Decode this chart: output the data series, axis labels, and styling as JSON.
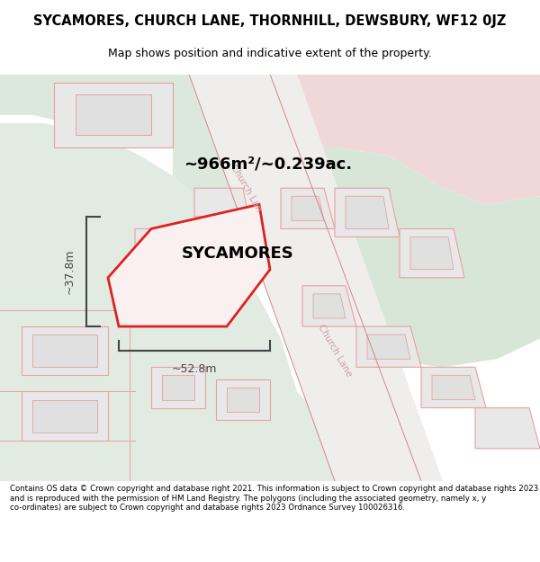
{
  "title": "SYCAMORES, CHURCH LANE, THORNHILL, DEWSBURY, WF12 0JZ",
  "subtitle": "Map shows position and indicative extent of the property.",
  "area_text": "~966m²/~0.239ac.",
  "property_name": "SYCAMORES",
  "dim_width": "~52.8m",
  "dim_height": "~37.8m",
  "footer": "Contains OS data © Crown copyright and database right 2021. This information is subject to Crown copyright and database rights 2023 and is reproduced with the permission of HM Land Registry. The polygons (including the associated geometry, namely x, y co-ordinates) are subject to Crown copyright and database rights 2023 Ordnance Survey 100026316.",
  "bg_white": "#ffffff",
  "map_bg": "#eaeee8",
  "green_light": "#dce8dc",
  "green_mid": "#ccdece",
  "pink_light": "#f0dada",
  "pink_mid": "#e8c8c8",
  "road_white": "#f5f5f5",
  "plot_fill": "#e8e8e8",
  "plot_edge": "#e8a0a0",
  "plot_edge2": "#d08888",
  "highlight_edge": "#dd2222",
  "dim_color": "#444444",
  "text_color": "#000000",
  "church_lane_color": "#c8a0a0"
}
